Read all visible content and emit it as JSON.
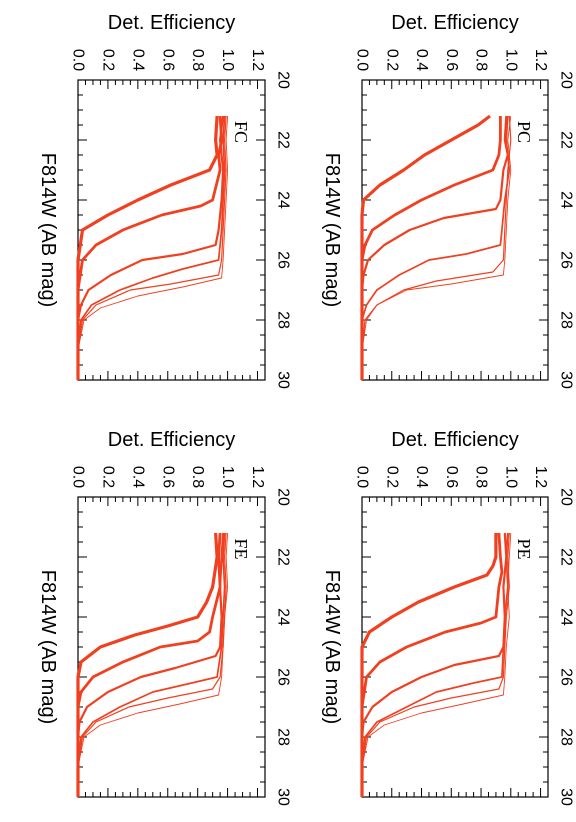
{
  "figure": {
    "colors": {
      "curve": "#f04020",
      "axis": "#000000",
      "background": "#ffffff"
    },
    "orientation": "rotated 90 degrees clockwise"
  },
  "chart_data": [
    {
      "type": "line",
      "panel_label": "PC",
      "xlabel": "F814W (AB mag)",
      "ylabel": "Det. Efficiency",
      "xlim": [
        20,
        30
      ],
      "ylim": [
        0,
        1.25
      ],
      "x_ticks": [
        20,
        22,
        24,
        26,
        28,
        30
      ],
      "y_ticks": [
        0.0,
        0.2,
        0.4,
        0.6,
        0.8,
        1.0,
        1.2
      ],
      "x_tick_labels": [
        "20",
        "22",
        "24",
        "26",
        "28",
        "30"
      ],
      "y_tick_labels": [
        "0.0",
        "0.2",
        "0.4",
        "0.6",
        "0.8",
        "1.0",
        "1.2"
      ],
      "series": [
        {
          "x": [
            21.2,
            21.5,
            22,
            22.5,
            23,
            23.5,
            24,
            24.5,
            25,
            26,
            27,
            28,
            29,
            30
          ],
          "values": [
            0.86,
            0.78,
            0.6,
            0.42,
            0.28,
            0.12,
            0.01,
            0.0,
            0.0,
            0.0,
            0.0,
            0.0,
            0.0,
            0.0
          ]
        },
        {
          "x": [
            21.2,
            22,
            22.5,
            23,
            23.5,
            24,
            24.5,
            25,
            25.5,
            26,
            27,
            28,
            29,
            30
          ],
          "values": [
            0.93,
            0.93,
            0.92,
            0.88,
            0.62,
            0.4,
            0.22,
            0.07,
            0.02,
            0.0,
            0.0,
            0.0,
            0.0,
            0.0
          ]
        },
        {
          "x": [
            21.2,
            22,
            22.5,
            23,
            24,
            24.3,
            24.6,
            25,
            25.5,
            26,
            26.5,
            27,
            28,
            29.5
          ],
          "values": [
            0.97,
            0.96,
            0.98,
            0.95,
            0.93,
            0.9,
            0.55,
            0.32,
            0.15,
            0.04,
            0.01,
            0.0,
            0.0,
            0.0
          ]
        },
        {
          "x": [
            21.2,
            22,
            23,
            24,
            25,
            25.5,
            25.8,
            26,
            26.5,
            27,
            27.5,
            28,
            29,
            30
          ],
          "values": [
            0.98,
            0.97,
            0.99,
            0.96,
            0.94,
            0.93,
            0.7,
            0.45,
            0.25,
            0.1,
            0.03,
            0.0,
            0.0,
            0.0
          ]
        },
        {
          "x": [
            21.2,
            22,
            23,
            24,
            25,
            26,
            26.4,
            26.7,
            27,
            27.5,
            28,
            29,
            30
          ],
          "values": [
            0.99,
            1.0,
            0.98,
            0.97,
            0.96,
            0.95,
            0.88,
            0.5,
            0.28,
            0.1,
            0.02,
            0.0,
            0.0
          ]
        },
        {
          "x": [
            21.2,
            22,
            23,
            24,
            25,
            26,
            26.5,
            26.8,
            27,
            27.5,
            28,
            29,
            30
          ],
          "values": [
            1.0,
            0.98,
            1.0,
            0.98,
            0.97,
            0.96,
            0.95,
            0.6,
            0.3,
            0.1,
            0.03,
            0.0,
            0.0
          ]
        }
      ]
    },
    {
      "type": "line",
      "panel_label": "FC",
      "xlabel": "F814W (AB mag)",
      "ylabel": "Det. Efficiency",
      "xlim": [
        20,
        30
      ],
      "ylim": [
        0,
        1.25
      ],
      "x_ticks": [
        20,
        22,
        24,
        26,
        28,
        30
      ],
      "y_ticks": [
        0.0,
        0.2,
        0.4,
        0.6,
        0.8,
        1.0,
        1.2
      ],
      "x_tick_labels": [
        "20",
        "22",
        "24",
        "26",
        "28",
        "30"
      ],
      "y_tick_labels": [
        "0.0",
        "0.2",
        "0.4",
        "0.6",
        "0.8",
        "1.0",
        "1.2"
      ],
      "series": [
        {
          "x": [
            21.2,
            22,
            22.5,
            23,
            23.5,
            24,
            24.5,
            25,
            26,
            27,
            28,
            29,
            30
          ],
          "values": [
            0.93,
            0.92,
            0.93,
            0.88,
            0.62,
            0.4,
            0.2,
            0.03,
            0.0,
            0.0,
            0.0,
            0.0,
            0.0
          ]
        },
        {
          "x": [
            21.2,
            22,
            22.5,
            23,
            24,
            24.2,
            24.5,
            25,
            25.5,
            26,
            27,
            28,
            29,
            30
          ],
          "values": [
            0.95,
            0.96,
            0.94,
            0.95,
            0.9,
            0.82,
            0.56,
            0.3,
            0.12,
            0.03,
            0.0,
            0.0,
            0.0,
            0.0
          ]
        },
        {
          "x": [
            21.2,
            22,
            23,
            24,
            25,
            25.5,
            25.8,
            26,
            26.5,
            27,
            27.5,
            28,
            29,
            30
          ],
          "values": [
            0.97,
            0.95,
            0.97,
            0.96,
            0.94,
            0.92,
            0.7,
            0.43,
            0.22,
            0.07,
            0.02,
            0.0,
            0.0,
            0.0
          ]
        },
        {
          "x": [
            21.2,
            22,
            23,
            24,
            25,
            26,
            26.3,
            26.6,
            27,
            27.5,
            28,
            29,
            30
          ],
          "values": [
            0.98,
            0.97,
            0.98,
            0.97,
            0.96,
            0.94,
            0.7,
            0.5,
            0.28,
            0.09,
            0.02,
            0.0,
            0.0
          ]
        },
        {
          "x": [
            21.2,
            22,
            23,
            24,
            25,
            26,
            26.5,
            26.8,
            27,
            27.5,
            28,
            29,
            30
          ],
          "values": [
            0.99,
            0.98,
            0.99,
            0.98,
            0.97,
            0.96,
            0.94,
            0.62,
            0.35,
            0.12,
            0.03,
            0.0,
            0.0
          ]
        },
        {
          "x": [
            21.2,
            22,
            23,
            24,
            25,
            26,
            26.6,
            26.9,
            27.2,
            27.6,
            28,
            29,
            30
          ],
          "values": [
            1.0,
            0.99,
            1.0,
            0.99,
            0.98,
            0.97,
            0.96,
            0.7,
            0.4,
            0.15,
            0.04,
            0.0,
            0.0
          ]
        }
      ]
    },
    {
      "type": "line",
      "panel_label": "PE",
      "xlabel": "F814W (AB mag)",
      "ylabel": "Det. Efficiency",
      "xlim": [
        20,
        30
      ],
      "ylim": [
        0,
        1.25
      ],
      "x_ticks": [
        20,
        22,
        24,
        26,
        28,
        30
      ],
      "y_ticks": [
        0.0,
        0.2,
        0.4,
        0.6,
        0.8,
        1.0,
        1.2
      ],
      "x_tick_labels": [
        "20",
        "22",
        "24",
        "26",
        "28",
        "30"
      ],
      "y_tick_labels": [
        "0.0",
        "0.2",
        "0.4",
        "0.6",
        "0.8",
        "1.0",
        "1.2"
      ],
      "series": [
        {
          "x": [
            21.2,
            22,
            22.3,
            22.6,
            23,
            23.5,
            24,
            24.5,
            25,
            26,
            27,
            28,
            29,
            30
          ],
          "values": [
            0.9,
            0.9,
            0.88,
            0.84,
            0.62,
            0.38,
            0.2,
            0.05,
            0.0,
            0.0,
            0.0,
            0.0,
            0.0,
            0.0
          ]
        },
        {
          "x": [
            21.2,
            22,
            22.5,
            23,
            24,
            24.2,
            24.5,
            25,
            25.5,
            26,
            27,
            28,
            29,
            30
          ],
          "values": [
            0.92,
            0.93,
            0.94,
            0.92,
            0.9,
            0.8,
            0.56,
            0.3,
            0.12,
            0.03,
            0.0,
            0.0,
            0.0,
            0.0
          ]
        },
        {
          "x": [
            21.2,
            22,
            23,
            24,
            25,
            25.3,
            25.6,
            26,
            26.5,
            27,
            27.5,
            28,
            29,
            30
          ],
          "values": [
            0.96,
            0.97,
            0.95,
            0.96,
            0.95,
            0.92,
            0.62,
            0.4,
            0.2,
            0.07,
            0.01,
            0.0,
            0.0,
            0.0
          ]
        },
        {
          "x": [
            21.2,
            22,
            23,
            24,
            25,
            26,
            26.2,
            26.5,
            27,
            27.5,
            28,
            29,
            30
          ],
          "values": [
            0.98,
            0.97,
            0.98,
            0.96,
            0.95,
            0.94,
            0.75,
            0.5,
            0.3,
            0.1,
            0.02,
            0.0,
            0.0
          ]
        },
        {
          "x": [
            21.2,
            22,
            23,
            24,
            25,
            26,
            26.4,
            26.7,
            27,
            27.5,
            28,
            29,
            30
          ],
          "values": [
            0.99,
            0.98,
            0.99,
            0.97,
            0.96,
            0.95,
            0.92,
            0.6,
            0.35,
            0.12,
            0.03,
            0.0,
            0.0
          ]
        },
        {
          "x": [
            21.2,
            22,
            23,
            24,
            25,
            26,
            26.6,
            26.9,
            27.2,
            27.6,
            28,
            29,
            30
          ],
          "values": [
            1.0,
            0.99,
            0.98,
            0.99,
            0.97,
            0.96,
            0.95,
            0.68,
            0.4,
            0.15,
            0.04,
            0.0,
            0.0
          ]
        }
      ]
    },
    {
      "type": "line",
      "panel_label": "FE",
      "xlabel": "F814W (AB mag)",
      "ylabel": "Det. Efficiency",
      "xlim": [
        20,
        30
      ],
      "ylim": [
        0,
        1.25
      ],
      "x_ticks": [
        20,
        22,
        24,
        26,
        28,
        30
      ],
      "y_ticks": [
        0.0,
        0.2,
        0.4,
        0.6,
        0.8,
        1.0,
        1.2
      ],
      "x_tick_labels": [
        "20",
        "22",
        "24",
        "26",
        "28",
        "30"
      ],
      "y_tick_labels": [
        "0.0",
        "0.2",
        "0.4",
        "0.6",
        "0.8",
        "1.0",
        "1.2"
      ],
      "series": [
        {
          "x": [
            21.2,
            22,
            23,
            23.5,
            24,
            24.3,
            24.6,
            25,
            25.5,
            26,
            27,
            28,
            29,
            30
          ],
          "values": [
            0.92,
            0.93,
            0.9,
            0.86,
            0.8,
            0.6,
            0.38,
            0.15,
            0.02,
            0.0,
            0.0,
            0.0,
            0.0,
            0.0
          ]
        },
        {
          "x": [
            21.2,
            22,
            23,
            24,
            24.5,
            24.8,
            25,
            25.5,
            26,
            26.5,
            27,
            28,
            29,
            30
          ],
          "values": [
            0.95,
            0.94,
            0.95,
            0.9,
            0.88,
            0.8,
            0.55,
            0.3,
            0.1,
            0.02,
            0.0,
            0.0,
            0.0,
            0.0
          ]
        },
        {
          "x": [
            21.2,
            22,
            23,
            24,
            25,
            25.3,
            25.7,
            26,
            26.5,
            27,
            27.5,
            28,
            29,
            30
          ],
          "values": [
            0.97,
            0.96,
            0.95,
            0.96,
            0.95,
            0.92,
            0.65,
            0.42,
            0.2,
            0.06,
            0.01,
            0.0,
            0.0,
            0.0
          ]
        },
        {
          "x": [
            21.2,
            22,
            23,
            24,
            25,
            26,
            26.2,
            26.5,
            27,
            27.5,
            28,
            29,
            30
          ],
          "values": [
            0.98,
            0.97,
            0.98,
            0.97,
            0.96,
            0.93,
            0.76,
            0.5,
            0.28,
            0.1,
            0.02,
            0.0,
            0.0
          ]
        },
        {
          "x": [
            21.2,
            22,
            23,
            24,
            25,
            26,
            26.4,
            26.7,
            27,
            27.5,
            28,
            29,
            30
          ],
          "values": [
            0.99,
            0.98,
            0.99,
            0.98,
            0.97,
            0.95,
            0.9,
            0.6,
            0.34,
            0.12,
            0.03,
            0.0,
            0.0
          ]
        },
        {
          "x": [
            21.2,
            22,
            23,
            24,
            25,
            26,
            26.6,
            26.9,
            27.2,
            27.6,
            28,
            29,
            30
          ],
          "values": [
            1.0,
            0.99,
            1.0,
            0.98,
            0.97,
            0.96,
            0.94,
            0.68,
            0.4,
            0.15,
            0.04,
            0.0,
            0.0
          ]
        }
      ]
    }
  ]
}
